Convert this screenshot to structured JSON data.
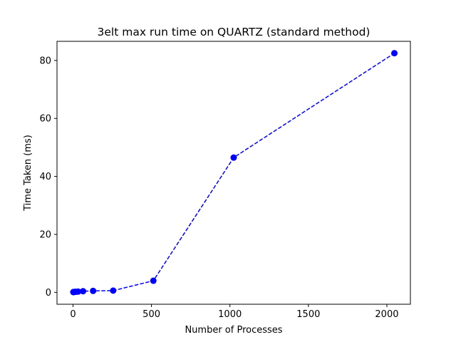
{
  "chart_data": {
    "type": "line",
    "title": "3elt max run time on QUARTZ (standard method)",
    "xlabel": "Number of Processes",
    "ylabel": "Time Taken (ms)",
    "xlim": [
      -102,
      2150
    ],
    "ylim": [
      -4.1,
      86.6
    ],
    "xticks": [
      0,
      500,
      1000,
      1500,
      2000
    ],
    "yticks": [
      0,
      20,
      40,
      60,
      80
    ],
    "grid": false,
    "series": [
      {
        "color": "#0000ff",
        "linestyle": "dashed",
        "marker": "circle",
        "x": [
          2,
          4,
          8,
          16,
          32,
          64,
          128,
          256,
          512,
          1024,
          2048
        ],
        "y": [
          0.1,
          0.1,
          0.15,
          0.2,
          0.25,
          0.4,
          0.5,
          0.6,
          4.0,
          46.5,
          82.5
        ]
      }
    ]
  }
}
